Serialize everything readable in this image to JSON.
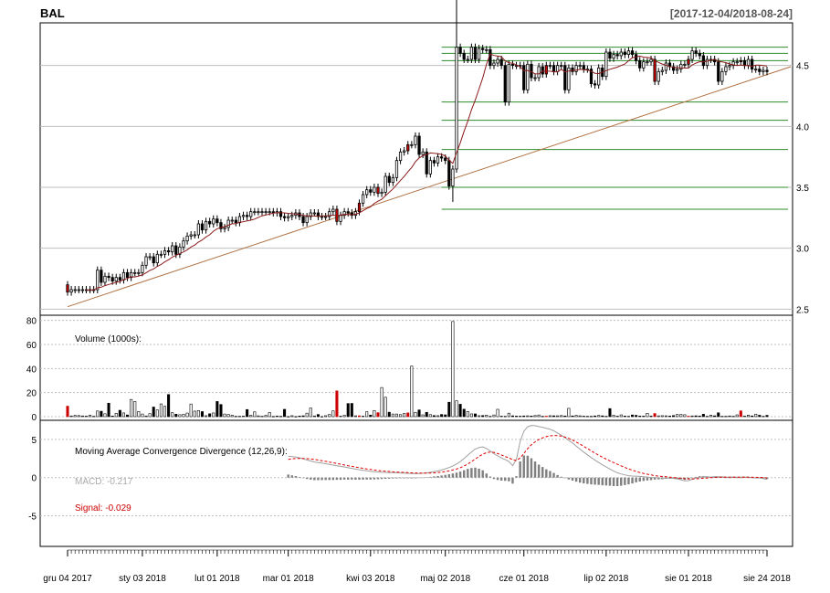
{
  "chart_data": [
    {
      "type": "candlestick",
      "title": "BAL",
      "date_range": "[2017-12-04/2018-08-24]",
      "yticks": [
        "4.5",
        "4.0",
        "3.5",
        "3.0",
        "2.5"
      ],
      "ytick_values": [
        4.5,
        4.0,
        3.5,
        3.0,
        2.5
      ],
      "ylim": [
        2.45,
        4.85
      ],
      "grid": true,
      "series": [
        {
          "name": "",
          "type": "ohlc",
          "x": [
            0,
            1,
            2,
            3,
            4,
            5,
            6,
            7,
            8,
            9,
            10,
            11,
            12,
            13,
            14,
            15,
            16,
            17,
            18,
            19,
            20,
            21,
            22,
            23,
            24,
            25,
            26,
            27,
            28,
            29,
            30,
            31,
            32,
            33,
            34,
            35,
            36,
            37,
            38,
            39,
            40,
            41,
            42,
            43,
            44,
            45,
            46,
            47,
            48,
            49,
            50,
            51,
            52,
            53,
            54,
            55,
            56,
            57,
            58,
            59,
            60,
            61,
            62,
            63,
            64,
            65,
            66,
            67,
            68,
            69,
            70,
            71,
            72,
            73,
            74,
            75,
            76,
            77,
            78,
            79,
            80,
            81,
            82,
            83,
            84,
            85,
            86,
            87,
            88,
            89,
            90,
            91,
            92,
            93,
            94,
            95,
            96,
            97,
            98,
            99,
            100,
            101,
            102,
            103,
            104,
            105,
            106,
            107,
            108,
            109,
            110,
            111,
            112,
            113,
            114,
            115,
            116,
            117,
            118,
            119,
            120,
            121,
            122,
            123,
            124,
            125,
            126,
            127,
            128,
            129,
            130,
            131,
            132,
            133,
            134,
            135,
            136,
            137,
            138,
            139,
            140,
            141,
            142,
            143,
            144,
            145,
            146,
            147,
            148,
            149,
            150,
            151,
            152,
            153,
            154,
            155,
            156,
            157,
            158,
            159,
            160,
            161,
            162,
            163,
            164,
            165,
            166,
            167,
            168,
            169,
            170,
            171,
            172,
            173,
            174,
            175,
            176,
            177,
            178,
            179,
            180,
            181,
            182,
            183,
            184,
            185,
            186,
            187
          ],
          "close": [
            2.64,
            2.66,
            2.66,
            2.66,
            2.66,
            2.66,
            2.66,
            2.66,
            2.82,
            2.72,
            2.77,
            2.76,
            2.73,
            2.76,
            2.74,
            2.8,
            2.76,
            2.8,
            2.8,
            2.8,
            2.86,
            2.93,
            2.93,
            2.88,
            2.95,
            2.95,
            2.98,
            2.97,
            3.02,
            2.95,
            3.01,
            3.06,
            3.1,
            3.11,
            3.11,
            3.2,
            3.15,
            3.22,
            3.2,
            3.24,
            3.21,
            3.16,
            3.17,
            3.23,
            3.23,
            3.21,
            3.26,
            3.27,
            3.26,
            3.3,
            3.3,
            3.3,
            3.3,
            3.3,
            3.3,
            3.29,
            3.3,
            3.26,
            3.25,
            3.26,
            3.27,
            3.29,
            3.26,
            3.21,
            3.26,
            3.29,
            3.29,
            3.26,
            3.26,
            3.26,
            3.3,
            3.32,
            3.22,
            3.27,
            3.3,
            3.29,
            3.27,
            3.3,
            3.37,
            3.44,
            3.48,
            3.46,
            3.5,
            3.45,
            3.46,
            3.59,
            3.54,
            3.58,
            3.72,
            3.79,
            3.8,
            3.85,
            3.85,
            3.92,
            3.77,
            3.79,
            3.61,
            3.72,
            3.7,
            3.75,
            3.74,
            3.72,
            3.51,
            3.65,
            4.65,
            4.6,
            4.55,
            4.55,
            4.65,
            4.55,
            4.64,
            4.63,
            4.63,
            4.5,
            4.52,
            4.55,
            4.5,
            4.2,
            4.51,
            4.5,
            4.5,
            4.5,
            4.3,
            4.51,
            4.4,
            4.4,
            4.49,
            4.43,
            4.5,
            4.5,
            4.45,
            4.5,
            4.5,
            4.3,
            4.48,
            4.45,
            4.5,
            4.5,
            4.47,
            4.47,
            4.35,
            4.34,
            4.48,
            4.41,
            4.61,
            4.56,
            4.59,
            4.58,
            4.61,
            4.59,
            4.62,
            4.59,
            4.54,
            4.48,
            4.53,
            4.53,
            4.55,
            4.37,
            4.45,
            4.46,
            4.52,
            4.49,
            4.46,
            4.47,
            4.51,
            4.51,
            4.55,
            4.62,
            4.6,
            4.58,
            4.5,
            4.55,
            4.55,
            4.53,
            4.37,
            4.45,
            4.49,
            4.5,
            4.53,
            4.53,
            4.54,
            4.5,
            4.55,
            4.47,
            4.47,
            4.45,
            4.46,
            4.45
          ],
          "trend_line": [
            [
              2.52,
              0
            ],
            [
              4.47,
              187
            ]
          ],
          "sma_note": "moving average shown as dark red line"
        }
      ],
      "support_lines": [
        4.65,
        4.6,
        4.54,
        4.2,
        4.05,
        3.81,
        3.5,
        3.32
      ]
    },
    {
      "type": "bar",
      "label": "Volume (1000s):",
      "yticks": [
        "80",
        "60",
        "40",
        "20",
        "0"
      ],
      "ytick_values": [
        80,
        60,
        40,
        20,
        0
      ],
      "ylim": [
        0,
        82
      ],
      "values": [
        8.7,
        0.6,
        1.0,
        0.9,
        0.6,
        0.4,
        1.2,
        0.3,
        4.7,
        4.5,
        2.4,
        11.2,
        0.5,
        2.8,
        5.3,
        3.1,
        1.4,
        14.3,
        12.6,
        4.3,
        2.2,
        0.6,
        2.5,
        8.0,
        5.6,
        10.6,
        8.6,
        18.4,
        3.3,
        2.0,
        1.6,
        2.0,
        3.0,
        10.5,
        4.6,
        5.1,
        4.2,
        0.8,
        2.4,
        3.1,
        12.6,
        10.1,
        2.2,
        1.8,
        1.2,
        0.3,
        0.3,
        0.4,
        5.9,
        1.1,
        4.0,
        0.7,
        0.3,
        1.0,
        3.5,
        0.2,
        0.5,
        0.3,
        6.1,
        0.1,
        0.8,
        0.1,
        0.5,
        0.7,
        2.9,
        7.2,
        0.6,
        1.8,
        0.1,
        0.8,
        1.8,
        4.8,
        21.4,
        0.4,
        1.1,
        10.9,
        11.0,
        0.7,
        0.7,
        0.4,
        4.1,
        1.3,
        5.1,
        3.3,
        24.2,
        16.1,
        3.7,
        2.2,
        2.2,
        1.7,
        2.7,
        3.1,
        42.0,
        3.6,
        5.6,
        1.5,
        3.6,
        1.7,
        0.9,
        0.8,
        1.8,
        1.5,
        12.0,
        79.1,
        13.2,
        10.3,
        6.2,
        4.3,
        2.3,
        2.3,
        0.8,
        0.9,
        1.3,
        0.3,
        1.4,
        6.1,
        0.4,
        0.3,
        2.9,
        0.7,
        0.5,
        0.4,
        0.6,
        0.7,
        0.5,
        0.9,
        1.4,
        0.3,
        0.4,
        0.8,
        0.7,
        0.7,
        0.9,
        0.6,
        6.9,
        0.6,
        1.0,
        0.7,
        0.4,
        0.3,
        0.3,
        0.6,
        1.0,
        0.7,
        0.3,
        6.7,
        1.1,
        0.4,
        1.5,
        0.5,
        0.3,
        1.4,
        1.1,
        0.5,
        0.5,
        2.8,
        0.5,
        2.6,
        0.7,
        0.8,
        0.7,
        0.5,
        0.9,
        1.8,
        1.8,
        1.6,
        0.4,
        0.6,
        0.7,
        0.5,
        2.0,
        0.3,
        1.3,
        0.7,
        3.2,
        0.3,
        0.3,
        0.6,
        0.3,
        1.5,
        4.8,
        0.4,
        1.3,
        0.6,
        2.1,
        1.2,
        0.3,
        1.1
      ],
      "red_bars": [
        0,
        72,
        78,
        83,
        91,
        128,
        157,
        166,
        180
      ]
    },
    {
      "type": "line",
      "label": "Moving Average Convergence Divergence (12,26,9):",
      "macd_label": "MACD: -0.217",
      "signal_label": "Signal: -0.029",
      "yticks": [
        "5",
        "0",
        "-5"
      ],
      "ytick_values": [
        5,
        0,
        -5
      ],
      "ylim": [
        -9,
        7.5
      ],
      "series": [
        {
          "name": "MACD",
          "values": [
            2.8,
            2.75,
            2.7,
            2.6,
            2.45,
            2.3,
            2.18,
            2.05,
            1.97,
            1.9,
            1.82,
            1.73,
            1.64,
            1.56,
            1.47,
            1.39,
            1.3,
            1.21,
            1.11,
            1.03,
            0.96,
            0.89,
            0.82,
            0.77,
            0.73,
            0.7,
            0.68,
            0.66,
            0.65,
            0.63,
            0.61,
            0.59,
            0.56,
            0.53,
            0.52,
            0.54,
            0.58,
            0.62,
            0.7,
            0.79,
            0.88,
            1.0,
            1.15,
            1.32,
            1.53,
            1.78,
            2.09,
            2.49,
            2.94,
            3.36,
            3.74,
            3.93,
            4.03,
            3.81,
            3.5,
            3.12,
            2.84,
            2.57,
            2.35,
            2.09,
            1.57,
            2.42,
            4.69,
            6.05,
            6.65,
            6.83,
            6.79,
            6.68,
            6.59,
            6.45,
            6.34,
            6.12,
            5.84,
            5.55,
            5.23,
            4.89,
            4.53,
            4.13,
            3.73,
            3.34,
            2.98,
            2.62,
            2.29,
            1.98,
            1.67,
            1.39,
            1.13,
            0.85,
            0.64,
            0.48,
            0.36,
            0.26,
            0.21,
            0.19,
            0.16,
            0.12,
            0.07,
            0.03,
            0.0,
            -0.03,
            -0.06,
            -0.05,
            -0.08,
            -0.11,
            -0.16,
            -0.28,
            -0.43,
            -0.39,
            -0.22,
            -0.06,
            0.06,
            0.11,
            0.11,
            0.08,
            0.13,
            0.12,
            0.1,
            0.07,
            0.06,
            0.08,
            0.05,
            0.05,
            0.07,
            0.06,
            0.0,
            -0.05,
            -0.05,
            -0.13,
            -0.22
          ]
        },
        {
          "name": "Signal",
          "values": [
            2.4,
            2.45,
            2.5,
            2.52,
            2.51,
            2.48,
            2.44,
            2.38,
            2.3,
            2.22,
            2.13,
            2.04,
            1.95,
            1.85,
            1.76,
            1.65,
            1.56,
            1.47,
            1.38,
            1.3,
            1.22,
            1.14,
            1.07,
            1.0,
            0.94,
            0.88,
            0.84,
            0.8,
            0.76,
            0.73,
            0.7,
            0.68,
            0.65,
            0.63,
            0.61,
            0.59,
            0.58,
            0.59,
            0.6,
            0.63,
            0.67,
            0.72,
            0.79,
            0.88,
            0.99,
            1.13,
            1.3,
            1.52,
            1.79,
            2.1,
            2.43,
            2.76,
            3.07,
            3.27,
            3.35,
            3.3,
            3.15,
            2.96,
            2.77,
            2.57,
            2.35,
            2.23,
            2.57,
            3.16,
            3.78,
            4.29,
            4.68,
            4.98,
            5.2,
            5.36,
            5.47,
            5.51,
            5.5,
            5.43,
            5.3,
            5.13,
            4.92,
            4.66,
            4.39,
            4.09,
            3.8,
            3.51,
            3.21,
            2.93,
            2.67,
            2.42,
            2.19,
            1.96,
            1.75,
            1.54,
            1.33,
            1.14,
            0.97,
            0.81,
            0.67,
            0.55,
            0.44,
            0.35,
            0.26,
            0.2,
            0.15,
            0.11,
            0.06,
            0.01,
            -0.04,
            -0.09,
            -0.14,
            -0.17,
            -0.17,
            -0.15,
            -0.12,
            -0.08,
            -0.04,
            0.0,
            0.03,
            0.05,
            0.06,
            0.06,
            0.06,
            0.06,
            0.06,
            0.05,
            0.05,
            0.05,
            0.05,
            0.04,
            0.03,
            0.0,
            -0.03
          ]
        }
      ]
    }
  ],
  "xaxis": {
    "tick_labels": [
      "gru 04 2017",
      "sty 03 2018",
      "lut 01 2018",
      "mar 01 2018",
      "kwi 03 2018",
      "maj 02 2018",
      "cze 01 2018",
      "lip 02 2018",
      "sie 01 2018",
      "sie 24 2018"
    ]
  },
  "colors": {
    "background": "#ffffff",
    "grid": "#bfbfbf",
    "up_candle": "#ffffff",
    "down_candle": "#000000",
    "red_candle": "#cc0000",
    "sma": "#8b1a1a",
    "support": "#2e8b2e",
    "trend": "#b07040",
    "macd": "#a0a0a0",
    "signal": "#dd0000",
    "macd_hist": "#808080"
  }
}
